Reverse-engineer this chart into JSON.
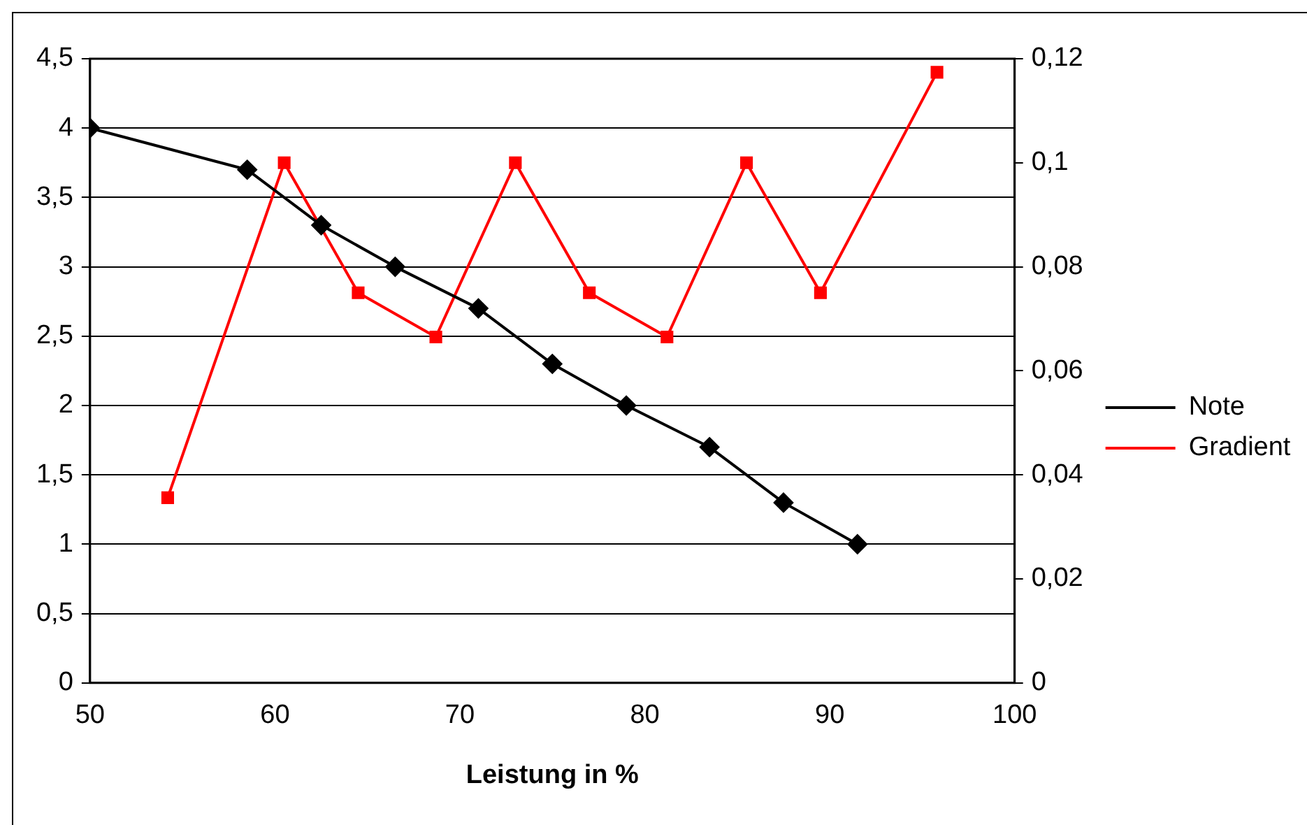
{
  "chart_data": {
    "type": "line",
    "xlabel": "Leistung in %",
    "legend": "right",
    "grid": "y",
    "xlim": [
      50,
      100
    ],
    "xticks": [
      50,
      60,
      70,
      80,
      90,
      100
    ],
    "ylim": [
      0,
      4.5
    ],
    "yticks": [
      0,
      {
        "value": 0.5,
        "label": "0,5"
      },
      1,
      {
        "value": 1.5,
        "label": "1,5"
      },
      2,
      {
        "value": 2.5,
        "label": "2,5"
      },
      3,
      {
        "value": 3.5,
        "label": "3,5"
      },
      4,
      {
        "value": 4.5,
        "label": "4,5"
      }
    ],
    "y2lim": [
      0,
      0.12
    ],
    "y2ticks": [
      0,
      {
        "value": 0.02,
        "label": "0,02"
      },
      {
        "value": 0.04,
        "label": "0,04"
      },
      {
        "value": 0.06,
        "label": "0,06"
      },
      {
        "value": 0.08,
        "label": "0,08"
      },
      {
        "value": 0.1,
        "label": "0,1"
      },
      {
        "value": 0.12,
        "label": "0,12"
      }
    ],
    "series": [
      {
        "name": "Note",
        "color": "#000000",
        "marker": "diamond",
        "x": [
          50,
          58.5,
          62.5,
          66.5,
          71,
          75,
          79,
          83.5,
          87.5,
          91.5
        ],
        "values": [
          4,
          3.7,
          3.3,
          3.0,
          2.7,
          2.3,
          2.0,
          1.7,
          1.3,
          1.0
        ]
      },
      {
        "name": "Gradient",
        "color": "#ff0000",
        "marker": "square",
        "axis": "y2",
        "x": [
          54.2,
          60.5,
          64.5,
          68.7,
          73,
          77,
          81.2,
          85.5,
          89.5,
          95.8
        ],
        "values": [
          0.0356,
          0.1,
          0.075,
          0.0665,
          0.1,
          0.075,
          0.0665,
          0.1,
          0.075,
          0.1174
        ]
      }
    ]
  }
}
